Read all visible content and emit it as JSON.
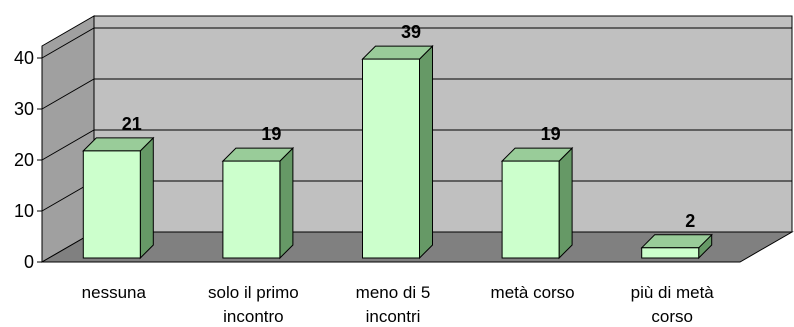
{
  "chart_data": {
    "type": "bar",
    "title": "",
    "xlabel": "",
    "ylabel": "",
    "categories": [
      [
        "nessuna"
      ],
      [
        "solo il primo",
        "incontro"
      ],
      [
        "meno di 5",
        "incontri"
      ],
      [
        "metà corso"
      ],
      [
        "più di metà",
        "corso"
      ]
    ],
    "values": [
      21,
      19,
      39,
      19,
      2
    ],
    "data_labels": [
      "21",
      "19",
      "39",
      "19",
      "2"
    ],
    "y_ticks": [
      "0",
      "10",
      "20",
      "30",
      "40"
    ],
    "ylim": [
      0,
      40
    ],
    "grid": true,
    "legend": "none",
    "three_d": true,
    "colors": {
      "bar_front": "#ccffcc",
      "bar_side": "#669966",
      "bar_top": "#99cc99",
      "wall": "#c0c0c0",
      "floor": "#808080",
      "side_wall": "#a0a0a0"
    }
  }
}
